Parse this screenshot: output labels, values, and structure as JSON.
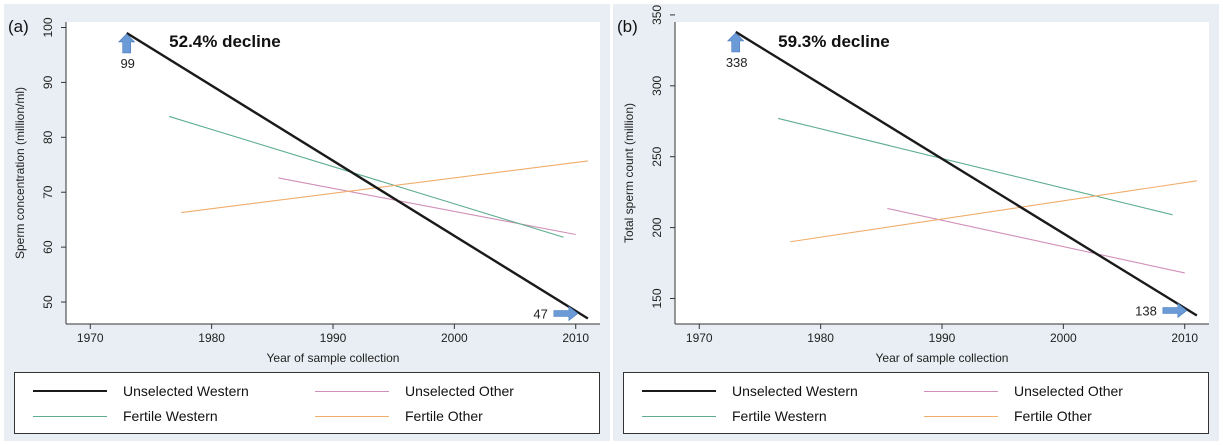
{
  "chart_data": [
    {
      "type": "line",
      "panel_label": "(a)",
      "title": "",
      "xlabel": "Year of sample collection",
      "ylabel": "Sperm concentration (million/ml)",
      "xlim": [
        1968,
        2012
      ],
      "ylim": [
        46,
        101
      ],
      "xticks": [
        1970,
        1980,
        1990,
        2000,
        2010
      ],
      "yticks": [
        50,
        60,
        70,
        80,
        90,
        100
      ],
      "annotation": "52.4% decline",
      "start_value_label": "99",
      "end_value_label": "47",
      "series": [
        {
          "name": "Unselected Western",
          "color": "#1a1a1a",
          "width": 2.4,
          "x": [
            1973,
            2011
          ],
          "y": [
            99,
            47
          ]
        },
        {
          "name": "Unselected Other",
          "color": "#d08fb8",
          "width": 1.1,
          "x": [
            1985.5,
            2010
          ],
          "y": [
            72.6,
            62.3
          ]
        },
        {
          "name": "Fertile Western",
          "color": "#5fae8e",
          "width": 1.1,
          "x": [
            1976.5,
            2009
          ],
          "y": [
            83.8,
            61.8
          ]
        },
        {
          "name": "Fertile Other",
          "color": "#f0ad6c",
          "width": 1.1,
          "x": [
            1977.5,
            2011
          ],
          "y": [
            66.3,
            75.7
          ]
        }
      ]
    },
    {
      "type": "line",
      "panel_label": "(b)",
      "title": "",
      "xlabel": "Year of sample collection",
      "ylabel": "Total sperm count (million)",
      "xlim": [
        1968,
        2012
      ],
      "ylim": [
        132,
        345
      ],
      "xticks": [
        1970,
        1980,
        1990,
        2000,
        2010
      ],
      "yticks": [
        150,
        200,
        250,
        300,
        350
      ],
      "annotation": "59.3% decline",
      "start_value_label": "338",
      "end_value_label": "138",
      "series": [
        {
          "name": "Unselected Western",
          "color": "#1a1a1a",
          "width": 2.4,
          "x": [
            1973,
            2011
          ],
          "y": [
            338,
            138
          ]
        },
        {
          "name": "Unselected Other",
          "color": "#d08fb8",
          "width": 1.1,
          "x": [
            1985.5,
            2010
          ],
          "y": [
            213.5,
            168
          ]
        },
        {
          "name": "Fertile Western",
          "color": "#5fae8e",
          "width": 1.1,
          "x": [
            1976.5,
            2009
          ],
          "y": [
            277,
            209
          ]
        },
        {
          "name": "Fertile Other",
          "color": "#f0ad6c",
          "width": 1.1,
          "x": [
            1977.5,
            2011
          ],
          "y": [
            190,
            233
          ]
        }
      ]
    }
  ],
  "legend": {
    "items": [
      {
        "name": "Unselected Western",
        "color": "#1a1a1a"
      },
      {
        "name": "Unselected Other",
        "color": "#d08fb8"
      },
      {
        "name": "Fertile Western",
        "color": "#5fae8e"
      },
      {
        "name": "Fertile Other",
        "color": "#f0ad6c"
      }
    ]
  },
  "colors": {
    "arrow": "#6b9bd6",
    "panel_bg": "#e8eef3",
    "plot_bg": "#ffffff"
  }
}
